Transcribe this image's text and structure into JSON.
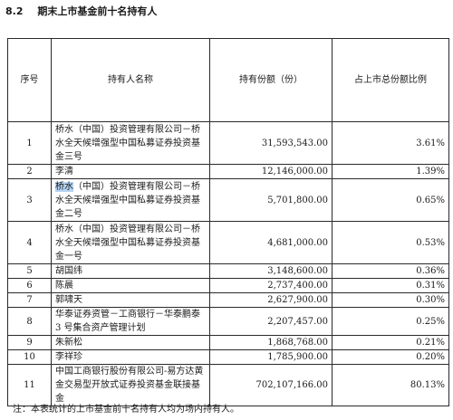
{
  "section": {
    "number": "8.2",
    "title": "期末上市基金前十名持有人"
  },
  "table": {
    "headers": {
      "seq": "序号",
      "holder": "持有人名称",
      "shares": "持有份额（份）",
      "ratio": "占上市总份额比例"
    },
    "rows": [
      {
        "seq": "1",
        "name": "桥水（中国）投资管理有限公司－桥水全天候增强型中国私募证券投资基金三号",
        "shares": "31,593,543.00",
        "ratio": "3.61%"
      },
      {
        "seq": "2",
        "name": "李清",
        "shares": "12,146,000.00",
        "ratio": "1.39%"
      },
      {
        "seq": "3",
        "name_highlight": "桥水",
        "name_rest": "（中国）投资管理有限公司－桥水全天候增强型中国私募证券投资基金二号",
        "shares": "5,701,800.00",
        "ratio": "0.65%"
      },
      {
        "seq": "4",
        "name": "桥水（中国）投资管理有限公司－桥水全天候增强型中国私募证券投资基金一号",
        "shares": "4,681,000.00",
        "ratio": "0.53%"
      },
      {
        "seq": "5",
        "name": "胡国纬",
        "shares": "3,148,600.00",
        "ratio": "0.36%"
      },
      {
        "seq": "6",
        "name": "陈晨",
        "shares": "2,737,400.00",
        "ratio": "0.31%"
      },
      {
        "seq": "7",
        "name": "郭啸天",
        "shares": "2,627,900.00",
        "ratio": "0.30%"
      },
      {
        "seq": "8",
        "name": "华泰证券资管－工商银行－华泰鹏泰 3 号集合资产管理计划",
        "shares": "2,207,457.00",
        "ratio": "0.25%"
      },
      {
        "seq": "9",
        "name": "朱新松",
        "shares": "1,868,768.00",
        "ratio": "0.21%"
      },
      {
        "seq": "10",
        "name": "李祥珍",
        "shares": "1,785,900.00",
        "ratio": "0.20%"
      },
      {
        "seq": "11",
        "name": "中国工商银行股份有限公司-易方达黄金交易型开放式证券投资基金联接基金",
        "shares": "702,107,166.00",
        "ratio": "80.13%"
      }
    ]
  },
  "footnote": "注：本表统计的上市基金前十名持有人均为场内持有人。"
}
